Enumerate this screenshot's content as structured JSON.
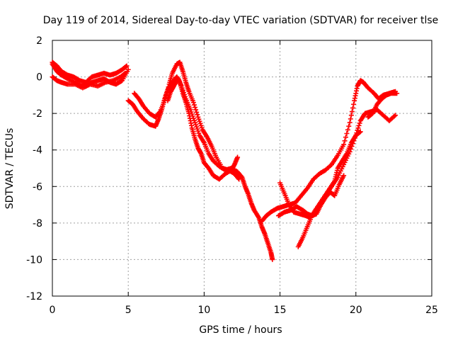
{
  "chart_data": {
    "type": "scatter",
    "title": "Day 119 of 2014, Sidereal Day-to-day VTEC variation (SDTVAR) for receiver tlse",
    "xlabel": "GPS time / hours",
    "ylabel": "SDTVAR / TECUs",
    "xlim": [
      0,
      25
    ],
    "ylim": [
      -12,
      2
    ],
    "xticks": [
      0,
      5,
      10,
      15,
      20,
      25
    ],
    "yticks": [
      2,
      0,
      -2,
      -4,
      -6,
      -8,
      -10,
      -12
    ],
    "grid": true,
    "marker": "+",
    "color": "#ff0000",
    "series": [
      {
        "values": [
          [
            0.0,
            0.8
          ],
          [
            0.3,
            0.6
          ],
          [
            0.6,
            0.3
          ],
          [
            1.0,
            0.1
          ],
          [
            1.4,
            0.0
          ],
          [
            1.8,
            -0.2
          ],
          [
            2.2,
            -0.3
          ],
          [
            2.6,
            0.0
          ],
          [
            3.0,
            0.1
          ],
          [
            3.4,
            0.2
          ],
          [
            3.8,
            0.1
          ],
          [
            4.2,
            0.2
          ],
          [
            4.6,
            0.4
          ],
          [
            4.9,
            0.6
          ]
        ]
      },
      {
        "values": [
          [
            0.0,
            0.7
          ],
          [
            0.3,
            0.3
          ],
          [
            0.6,
            0.1
          ],
          [
            1.0,
            -0.1
          ],
          [
            1.5,
            -0.3
          ],
          [
            1.9,
            -0.5
          ],
          [
            2.2,
            -0.5
          ],
          [
            2.6,
            -0.3
          ],
          [
            3.0,
            -0.2
          ],
          [
            3.4,
            -0.1
          ],
          [
            3.8,
            -0.3
          ],
          [
            4.2,
            -0.4
          ],
          [
            4.6,
            -0.2
          ],
          [
            5.0,
            0.4
          ]
        ]
      },
      {
        "values": [
          [
            0.0,
            0.0
          ],
          [
            0.3,
            -0.2
          ],
          [
            0.6,
            -0.3
          ],
          [
            1.0,
            -0.4
          ],
          [
            1.5,
            -0.4
          ],
          [
            2.0,
            -0.6
          ],
          [
            2.5,
            -0.4
          ],
          [
            3.0,
            -0.5
          ],
          [
            3.5,
            -0.3
          ],
          [
            4.0,
            -0.2
          ],
          [
            4.5,
            0.0
          ],
          [
            4.8,
            0.2
          ]
        ]
      },
      {
        "values": [
          [
            5.0,
            -1.3
          ],
          [
            5.3,
            -1.5
          ],
          [
            5.6,
            -1.9
          ],
          [
            6.0,
            -2.3
          ],
          [
            6.4,
            -2.6
          ],
          [
            6.8,
            -2.7
          ],
          [
            7.0,
            -2.3
          ],
          [
            7.2,
            -1.8
          ],
          [
            7.4,
            -1.2
          ],
          [
            7.6,
            -0.7
          ],
          [
            7.8,
            -0.4
          ],
          [
            8.0,
            -0.2
          ],
          [
            8.2,
            0.0
          ],
          [
            8.4,
            -0.3
          ],
          [
            8.6,
            -0.9
          ],
          [
            8.8,
            -1.4
          ],
          [
            9.0,
            -2.0
          ],
          [
            9.2,
            -2.8
          ],
          [
            9.4,
            -3.4
          ],
          [
            9.6,
            -3.9
          ],
          [
            9.8,
            -4.2
          ],
          [
            10.0,
            -4.7
          ],
          [
            10.3,
            -5.0
          ],
          [
            10.6,
            -5.4
          ],
          [
            11.0,
            -5.6
          ],
          [
            11.4,
            -5.3
          ],
          [
            11.8,
            -5.1
          ],
          [
            12.0,
            -4.8
          ],
          [
            12.2,
            -4.4
          ]
        ]
      },
      {
        "values": [
          [
            5.4,
            -0.9
          ],
          [
            5.7,
            -1.2
          ],
          [
            6.0,
            -1.6
          ],
          [
            6.4,
            -2.0
          ],
          [
            6.8,
            -2.2
          ],
          [
            7.1,
            -1.9
          ],
          [
            7.4,
            -1.3
          ],
          [
            7.7,
            -0.4
          ],
          [
            7.9,
            0.2
          ],
          [
            8.2,
            0.7
          ],
          [
            8.4,
            0.8
          ],
          [
            8.6,
            0.3
          ],
          [
            8.8,
            -0.3
          ],
          [
            9.0,
            -0.8
          ],
          [
            9.3,
            -1.4
          ],
          [
            9.6,
            -2.2
          ],
          [
            9.9,
            -2.9
          ],
          [
            10.2,
            -3.3
          ],
          [
            10.5,
            -3.8
          ],
          [
            10.8,
            -4.4
          ],
          [
            11.2,
            -5.0
          ],
          [
            11.6,
            -5.1
          ],
          [
            12.0,
            -5.3
          ],
          [
            12.3,
            -5.6
          ]
        ]
      },
      {
        "values": [
          [
            7.6,
            -1.3
          ],
          [
            7.8,
            -0.8
          ],
          [
            8.0,
            -0.5
          ],
          [
            8.3,
            -0.1
          ],
          [
            8.5,
            -0.5
          ],
          [
            8.8,
            -1.2
          ],
          [
            9.1,
            -1.8
          ],
          [
            9.4,
            -2.5
          ],
          [
            9.7,
            -3.2
          ],
          [
            10.0,
            -3.6
          ],
          [
            10.3,
            -4.2
          ],
          [
            10.6,
            -4.6
          ],
          [
            11.0,
            -4.9
          ],
          [
            11.4,
            -5.1
          ],
          [
            11.8,
            -5.0
          ],
          [
            12.2,
            -5.2
          ],
          [
            12.5,
            -5.5
          ],
          [
            12.7,
            -6.0
          ],
          [
            12.9,
            -6.4
          ],
          [
            13.1,
            -6.9
          ],
          [
            13.3,
            -7.3
          ],
          [
            13.6,
            -7.7
          ],
          [
            13.8,
            -8.2
          ],
          [
            14.0,
            -8.6
          ],
          [
            14.2,
            -9.1
          ],
          [
            14.4,
            -9.6
          ],
          [
            14.5,
            -10.0
          ]
        ]
      },
      {
        "values": [
          [
            13.8,
            -7.9
          ],
          [
            14.1,
            -7.6
          ],
          [
            14.4,
            -7.4
          ],
          [
            14.8,
            -7.2
          ],
          [
            15.2,
            -7.1
          ],
          [
            15.6,
            -7.0
          ],
          [
            16.0,
            -6.9
          ],
          [
            16.4,
            -6.5
          ],
          [
            16.8,
            -6.1
          ],
          [
            17.2,
            -5.6
          ],
          [
            17.6,
            -5.3
          ],
          [
            18.0,
            -5.1
          ],
          [
            18.4,
            -4.8
          ],
          [
            18.8,
            -4.3
          ],
          [
            19.2,
            -3.7
          ],
          [
            19.6,
            -2.5
          ],
          [
            19.9,
            -1.3
          ],
          [
            20.1,
            -0.5
          ],
          [
            20.3,
            -0.2
          ],
          [
            20.5,
            -0.3
          ],
          [
            20.8,
            -0.6
          ],
          [
            21.2,
            -0.9
          ],
          [
            21.5,
            -1.2
          ],
          [
            21.8,
            -1.0
          ],
          [
            22.2,
            -0.9
          ],
          [
            22.6,
            -0.8
          ]
        ]
      },
      {
        "values": [
          [
            15.0,
            -5.8
          ],
          [
            15.3,
            -6.4
          ],
          [
            15.6,
            -7.0
          ],
          [
            15.9,
            -7.4
          ],
          [
            16.3,
            -7.5
          ],
          [
            16.7,
            -7.6
          ],
          [
            17.0,
            -7.7
          ],
          [
            17.3,
            -7.4
          ],
          [
            17.6,
            -7.0
          ],
          [
            18.0,
            -6.5
          ],
          [
            18.4,
            -6.0
          ],
          [
            18.8,
            -5.5
          ],
          [
            19.2,
            -4.8
          ],
          [
            19.6,
            -4.1
          ],
          [
            20.0,
            -3.2
          ],
          [
            20.3,
            -2.4
          ],
          [
            20.6,
            -2.0
          ],
          [
            21.0,
            -1.9
          ],
          [
            21.4,
            -1.8
          ],
          [
            21.8,
            -2.1
          ],
          [
            22.2,
            -2.4
          ],
          [
            22.6,
            -2.1
          ]
        ]
      },
      {
        "values": [
          [
            16.2,
            -9.3
          ],
          [
            16.5,
            -8.8
          ],
          [
            16.8,
            -8.2
          ],
          [
            17.1,
            -7.6
          ],
          [
            17.4,
            -7.2
          ],
          [
            17.8,
            -6.7
          ],
          [
            18.2,
            -6.2
          ],
          [
            18.6,
            -5.7
          ],
          [
            18.8,
            -5.0
          ],
          [
            19.1,
            -4.6
          ],
          [
            19.4,
            -4.2
          ],
          [
            19.7,
            -3.6
          ],
          [
            20.0,
            -3.2
          ],
          [
            20.3,
            -3.0
          ]
        ]
      },
      {
        "values": [
          [
            20.8,
            -2.2
          ],
          [
            21.1,
            -2.0
          ],
          [
            21.4,
            -1.5
          ],
          [
            21.7,
            -1.2
          ],
          [
            22.0,
            -1.0
          ],
          [
            22.3,
            -0.9
          ],
          [
            22.7,
            -0.9
          ]
        ]
      },
      {
        "values": [
          [
            14.9,
            -7.6
          ],
          [
            15.3,
            -7.4
          ],
          [
            15.7,
            -7.3
          ],
          [
            16.1,
            -7.1
          ],
          [
            16.5,
            -7.3
          ],
          [
            16.8,
            -7.5
          ],
          [
            17.1,
            -7.6
          ],
          [
            17.4,
            -7.5
          ],
          [
            17.7,
            -7.0
          ],
          [
            18.0,
            -6.6
          ],
          [
            18.3,
            -6.3
          ],
          [
            18.6,
            -6.5
          ],
          [
            18.9,
            -5.9
          ],
          [
            19.2,
            -5.4
          ]
        ]
      }
    ]
  }
}
